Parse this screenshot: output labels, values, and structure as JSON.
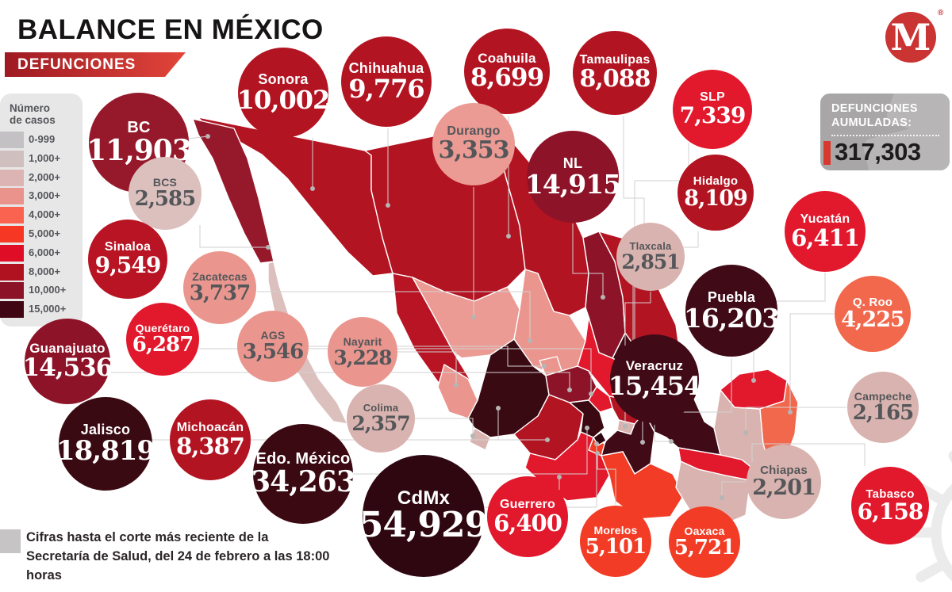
{
  "header": {
    "title_regular": "BALANCE EN",
    "title_bold": "MÉXICO",
    "banner": "DEFUNCIONES"
  },
  "legend": {
    "title_line1": "Número",
    "title_line2": "de casos",
    "buckets": [
      {
        "label": "0-999",
        "color": "#c3c1c3"
      },
      {
        "label": "1,000+",
        "color": "#d0bfbf"
      },
      {
        "label": "2,000+",
        "color": "#ddb4b4"
      },
      {
        "label": "3,000+",
        "color": "#ea938d"
      },
      {
        "label": "4,000+",
        "color": "#f9634f"
      },
      {
        "label": "5,000+",
        "color": "#f53723"
      },
      {
        "label": "6,000+",
        "color": "#e00d26"
      },
      {
        "label": "8,000+",
        "color": "#b01220"
      },
      {
        "label": "10,000+",
        "color": "#8c1327"
      },
      {
        "label": "15,000+",
        "color": "#400613"
      }
    ]
  },
  "total_box": {
    "line1": "DEFUNCIONES",
    "line2": "AUMULADAS:",
    "value": "317,303",
    "accent_color": "#d8392e",
    "box_color": "#a8a6a7"
  },
  "logo": {
    "letter": "M",
    "registered": "®",
    "color": "#ca3433"
  },
  "footnote": {
    "line1": "Cifras hasta el corte más reciente de la",
    "line2": "Secretaría de Salud, del 24 de febrero a las 18:00 horas"
  },
  "chart_data": {
    "type": "bubble-map",
    "title": "BALANCE EN MÉXICO",
    "subtitle": "DEFUNCIONES",
    "total_label": "DEFUNCIONES AUMULADAS:",
    "total": 317303,
    "legend_title": "Número de casos",
    "states": [
      {
        "name": "BC",
        "value": 11903,
        "display": "11,903",
        "color": "#96192b",
        "text": "#ffffff"
      },
      {
        "name": "Sonora",
        "value": 10002,
        "display": "10,002",
        "color": "#b31422",
        "text": "#ffffff"
      },
      {
        "name": "Chihuahua",
        "value": 9776,
        "display": "9,776",
        "color": "#b31422",
        "text": "#ffffff"
      },
      {
        "name": "Coahuila",
        "value": 8699,
        "display": "8,699",
        "color": "#b31422",
        "text": "#ffffff"
      },
      {
        "name": "Tamaulipas",
        "value": 8088,
        "display": "8,088",
        "color": "#b31422",
        "text": "#ffffff"
      },
      {
        "name": "SLP",
        "value": 7339,
        "display": "7,339",
        "color": "#e2182c",
        "text": "#ffffff"
      },
      {
        "name": "Durango",
        "value": 3353,
        "display": "3,353",
        "color": "#eb9b93",
        "text": "#54565a"
      },
      {
        "name": "NL",
        "value": 14915,
        "display": "14,915",
        "color": "#8d1428",
        "text": "#ffffff"
      },
      {
        "name": "Hidalgo",
        "value": 8109,
        "display": "8,109",
        "color": "#b31422",
        "text": "#ffffff"
      },
      {
        "name": "Yucatán",
        "value": 6411,
        "display": "6,411",
        "color": "#e2182c",
        "text": "#ffffff"
      },
      {
        "name": "BCS",
        "value": 2585,
        "display": "2,585",
        "color": "#dcc0bd",
        "text": "#54565a"
      },
      {
        "name": "Tlaxcala",
        "value": 2851,
        "display": "2,851",
        "color": "#d9b3af",
        "text": "#54565a"
      },
      {
        "name": "Sinaloa",
        "value": 9549,
        "display": "9,549",
        "color": "#b81423",
        "text": "#ffffff"
      },
      {
        "name": "Zacatecas",
        "value": 3737,
        "display": "3,737",
        "color": "#ea968e",
        "text": "#54565a"
      },
      {
        "name": "Puebla",
        "value": 16203,
        "display": "16,203",
        "color": "#400a16",
        "text": "#ffffff"
      },
      {
        "name": "Q. Roo",
        "value": 4225,
        "display": "4,225",
        "color": "#f1684c",
        "text": "#ffffff"
      },
      {
        "name": "Querétaro",
        "value": 6287,
        "display": "6,287",
        "color": "#e2182c",
        "text": "#ffffff"
      },
      {
        "name": "AGS",
        "value": 3546,
        "display": "3,546",
        "color": "#ea968e",
        "text": "#54565a"
      },
      {
        "name": "Nayarit",
        "value": 3228,
        "display": "3,228",
        "color": "#ea968e",
        "text": "#54565a"
      },
      {
        "name": "Veracruz",
        "value": 15454,
        "display": "15,454",
        "color": "#400a16",
        "text": "#ffffff"
      },
      {
        "name": "Guanajuato",
        "value": 14536,
        "display": "14,536",
        "color": "#8d1428",
        "text": "#ffffff"
      },
      {
        "name": "Campeche",
        "value": 2165,
        "display": "2,165",
        "color": "#d9b3af",
        "text": "#54565a"
      },
      {
        "name": "Jalisco",
        "value": 18819,
        "display": "18,819",
        "color": "#3a0a13",
        "text": "#ffffff"
      },
      {
        "name": "Michoacán",
        "value": 8387,
        "display": "8,387",
        "color": "#b31422",
        "text": "#ffffff"
      },
      {
        "name": "Colima",
        "value": 2357,
        "display": "2,357",
        "color": "#d9b3af",
        "text": "#54565a"
      },
      {
        "name": "Edo. México",
        "value": 34263,
        "display": "34,263",
        "color": "#3a0912",
        "text": "#ffffff"
      },
      {
        "name": "CdMx",
        "value": 54929,
        "display": "54,929",
        "color": "#2e0710",
        "text": "#ffffff"
      },
      {
        "name": "Guerrero",
        "value": 6400,
        "display": "6,400",
        "color": "#e2182c",
        "text": "#ffffff"
      },
      {
        "name": "Morelos",
        "value": 5101,
        "display": "5,101",
        "color": "#f23c25",
        "text": "#ffffff"
      },
      {
        "name": "Oaxaca",
        "value": 5721,
        "display": "5,721",
        "color": "#f23c25",
        "text": "#ffffff"
      },
      {
        "name": "Chiapas",
        "value": 2201,
        "display": "2,201",
        "color": "#d9b3af",
        "text": "#54565a"
      },
      {
        "name": "Tabasco",
        "value": 6158,
        "display": "6,158",
        "color": "#e2182c",
        "text": "#ffffff"
      }
    ]
  }
}
